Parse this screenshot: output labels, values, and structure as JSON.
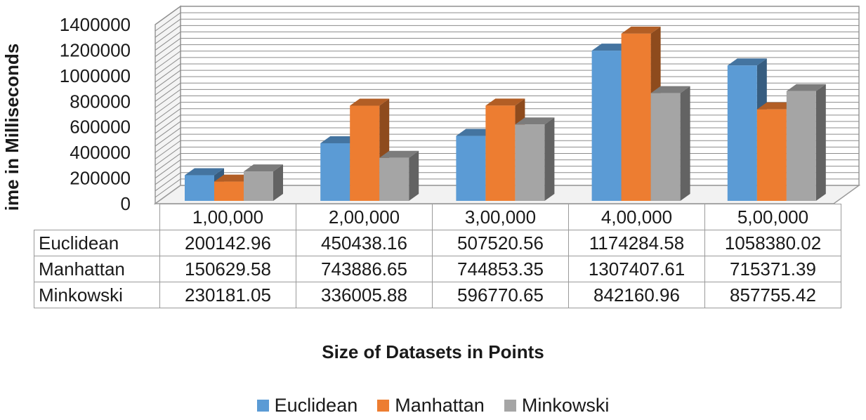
{
  "chart_data": {
    "type": "bar",
    "xlabel": "Size of Datasets in Points",
    "ylabel": "Running Time in Milliseconds",
    "categories": [
      "1,00,000",
      "2,00,000",
      "3,00,000",
      "4,00,000",
      "5,00,000"
    ],
    "ylim": [
      0,
      1400000
    ],
    "yticks": [
      "0",
      "200000",
      "400000",
      "600000",
      "800000",
      "1000000",
      "1200000",
      "1400000"
    ],
    "grid": true,
    "legend_position": "bottom",
    "series": [
      {
        "name": "Euclidean",
        "color": "#5b9bd5",
        "values": [
          200142.96,
          450438.16,
          507520.56,
          1174284.58,
          1058380.02
        ],
        "labels": [
          "200142.96",
          "450438.16",
          "507520.56",
          "1174284.58",
          "1058380.02"
        ]
      },
      {
        "name": "Manhattan",
        "color": "#ed7d31",
        "values": [
          150629.58,
          743886.65,
          744853.35,
          1307407.61,
          715371.39
        ],
        "labels": [
          "150629.58",
          "743886.65",
          "744853.35",
          "1307407.61",
          "715371.39"
        ]
      },
      {
        "name": "Minkowski",
        "color": "#a5a5a5",
        "values": [
          230181.05,
          336005.88,
          596770.65,
          842160.96,
          857755.42
        ],
        "labels": [
          "230181.05",
          "336005.88",
          "596770.65",
          "842160.96",
          "857755.42"
        ]
      }
    ]
  }
}
